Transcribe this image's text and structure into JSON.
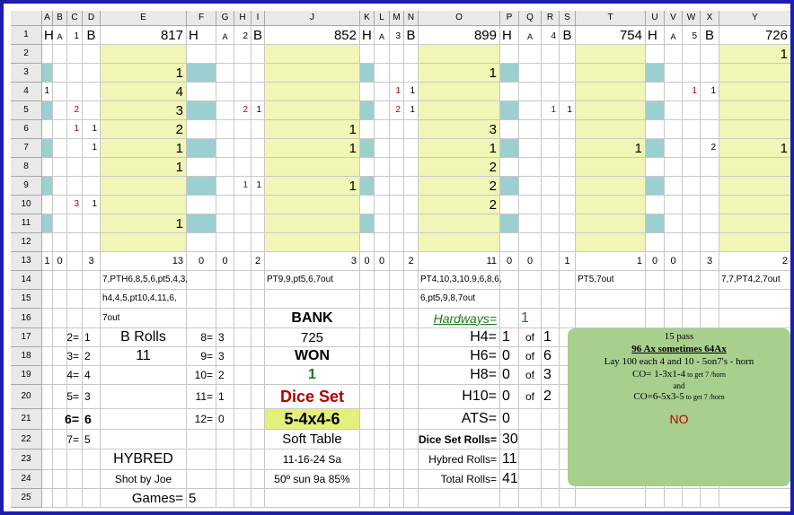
{
  "columns": [
    "A",
    "B",
    "C",
    "D",
    "E",
    "F",
    "G",
    "H",
    "I",
    "J",
    "K",
    "L",
    "M",
    "N",
    "O",
    "P",
    "Q",
    "R",
    "S",
    "T",
    "U",
    "V",
    "W",
    "X",
    "Y"
  ],
  "rows": [
    "1",
    "2",
    "3",
    "4",
    "5",
    "6",
    "7",
    "8",
    "9",
    "10",
    "11",
    "12",
    "13",
    "14",
    "15",
    "16",
    "17",
    "18",
    "19",
    "20",
    "21",
    "22",
    "23",
    "24",
    "25"
  ],
  "row1": {
    "A": "H",
    "B": "A",
    "C": "1",
    "D": "B",
    "E": "817",
    "F": "H",
    "G": "A",
    "H": "2",
    "I": "B",
    "J": "852",
    "K": "H",
    "L": "A",
    "M": "3",
    "N": "B",
    "O": "899",
    "P": "H",
    "Q": "A",
    "R": "4",
    "S": "B",
    "T": "754",
    "U": "H",
    "V": "A",
    "W": "5",
    "X": "B",
    "Y": "726"
  },
  "grid_values": {
    "2": {
      "Y": "1"
    },
    "3": {
      "E": "1",
      "O": "1"
    },
    "4": {
      "A": "1",
      "E": "4",
      "M": "1",
      "N": "1",
      "W": "1",
      "X": "1"
    },
    "5": {
      "C": "2",
      "E": "3",
      "H": "2",
      "I": "1",
      "M": "2",
      "N": "1",
      "R": "1",
      "S": "1"
    },
    "6": {
      "C": "1",
      "D": "1",
      "E": "2",
      "J": "1",
      "O": "3"
    },
    "7": {
      "D": "1",
      "E": "1",
      "J": "1",
      "O": "1",
      "T": "1",
      "X": "2",
      "Y": "1"
    },
    "8": {
      "E": "1",
      "O": "2"
    },
    "9": {
      "H": "1",
      "I": "1",
      "J": "1",
      "O": "2"
    },
    "10": {
      "C": "3",
      "D": "1",
      "O": "2"
    },
    "11": {
      "E": "1"
    }
  },
  "row13": {
    "A": "1",
    "B": "0",
    "D": "3",
    "E": "13",
    "F": "0",
    "G": "0",
    "I": "2",
    "J": "3",
    "K": "0",
    "L": "0",
    "N": "2",
    "O": "11",
    "P": "0",
    "Q": "0",
    "S": "1",
    "T": "1",
    "U": "0",
    "V": "0",
    "X": "3",
    "Y": "2"
  },
  "sequences": {
    "game1_line1": "7,PTH6,8,5,6,pt5,4,3,",
    "game1_line2": "h4,4,5,pt10,4,11,6,",
    "game1_line3": "7out",
    "game2": "PT9,9,pt5,6,7out",
    "game3_line1": "PT4,10,3,10,9,6,8,6,",
    "game3_line2": "6,pt5,9,8,7out",
    "game4": "PT5,7out",
    "game5": "7,7,PT4,2,7out"
  },
  "counts_left": [
    {
      "label": "2=",
      "value": "1"
    },
    {
      "label": "3=",
      "value": "2"
    },
    {
      "label": "4=",
      "value": "4"
    },
    {
      "label": "5=",
      "value": "3"
    },
    {
      "label": "6=",
      "value": "6"
    },
    {
      "label": "7=",
      "value": "5"
    }
  ],
  "counts_mid": [
    {
      "label": "8=",
      "value": "3"
    },
    {
      "label": "9=",
      "value": "3"
    },
    {
      "label": "10=",
      "value": "2"
    },
    {
      "label": "11=",
      "value": "1"
    },
    {
      "label": "12=",
      "value": "0"
    }
  ],
  "b_rolls": {
    "label": "B Rolls",
    "value": "11"
  },
  "hybred": {
    "label": "HYBRED",
    "shooter": "Shot by Joe",
    "games_label": "Games=",
    "games_value": "5"
  },
  "center": {
    "bank_label": "BANK",
    "bank_value": "725",
    "won_label": "WON",
    "won_value": "1",
    "dice_set_label": "Dice Set",
    "dice_set_value": "5-4x4-6",
    "table": "Soft Table",
    "date": "11-16-24 Sa",
    "weather": "50º sun 9a 85%"
  },
  "hardways": {
    "label": "Hardways=",
    "value": "1",
    "rows": [
      {
        "label": "H4=",
        "value": "1",
        "of": "of",
        "total": "1"
      },
      {
        "label": "H6=",
        "value": "0",
        "of": "of",
        "total": "6"
      },
      {
        "label": "H8=",
        "value": "0",
        "of": "of",
        "total": "3"
      },
      {
        "label": "H10=",
        "value": "0",
        "of": "of",
        "total": "2"
      }
    ],
    "ats_label": "ATS=",
    "ats_value": "0"
  },
  "rolls": [
    {
      "label": "Dice Set Rolls=",
      "value": "30"
    },
    {
      "label": "Hybred Rolls=",
      "value": "11"
    },
    {
      "label": "Total Rolls=",
      "value": "41"
    }
  ],
  "panel": {
    "line1": "15 pass",
    "line2": "96 Ax sometimes 64Ax",
    "line3": "Lay  100 each 4 and 10 - 5on7's - horn",
    "line4a": "CO= 1-3x1-4",
    "line4b": " to get 7 /horn",
    "line5": "and",
    "line6a": "CO=6-5x3-5",
    "line6b": " to get 7 /horn",
    "line7": "NO"
  },
  "colors": {
    "frame": "#1c1cb4",
    "yellow": "#f1f5b6",
    "teal": "#9ccfcf",
    "panel": "#a8cf8e",
    "red": "#b00000",
    "green": "#1a7a1a"
  }
}
